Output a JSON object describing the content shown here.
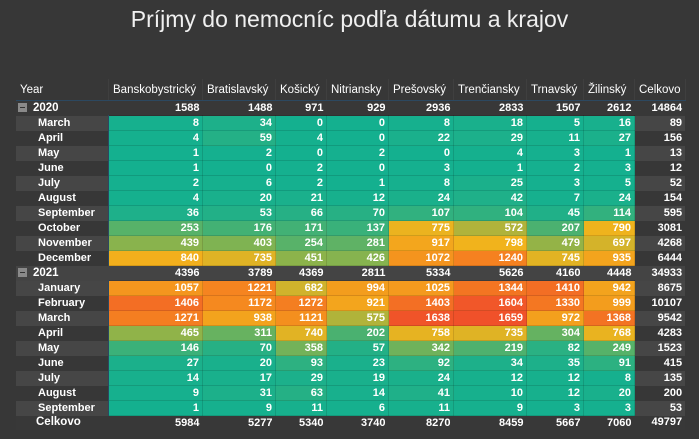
{
  "chart_data": {
    "type": "heatmap",
    "title": "Príjmy do nemocníc podľa dátumu a krajov",
    "row_header": "Year",
    "total_label": "Celkovo",
    "columns": [
      "Banskobystrický",
      "Bratislavský",
      "Košický",
      "Nitriansky",
      "Prešovský",
      "Trenčiansky",
      "Trnavský",
      "Žilinský"
    ],
    "color_scale": [
      [
        0,
        "#14b08f"
      ],
      [
        450,
        "#8cb34b"
      ],
      [
        800,
        "#f2b31c"
      ],
      [
        1200,
        "#f5861f"
      ],
      [
        1660,
        "#f0512a"
      ]
    ],
    "years": [
      {
        "year": "2020",
        "totals": [
          1588,
          1488,
          971,
          929,
          2936,
          2833,
          1507,
          2612
        ],
        "total": 14864,
        "months": [
          {
            "month": "March",
            "values": [
              8,
              34,
              0,
              0,
              8,
              18,
              5,
              16
            ],
            "total": 89
          },
          {
            "month": "April",
            "values": [
              4,
              59,
              4,
              0,
              22,
              29,
              11,
              27
            ],
            "total": 156
          },
          {
            "month": "May",
            "values": [
              1,
              2,
              0,
              2,
              0,
              4,
              3,
              1
            ],
            "total": 13
          },
          {
            "month": "June",
            "values": [
              1,
              0,
              2,
              0,
              3,
              1,
              2,
              3
            ],
            "total": 12
          },
          {
            "month": "July",
            "values": [
              2,
              6,
              2,
              1,
              8,
              25,
              3,
              5
            ],
            "total": 52
          },
          {
            "month": "August",
            "values": [
              4,
              20,
              21,
              12,
              24,
              42,
              7,
              24
            ],
            "total": 154
          },
          {
            "month": "September",
            "values": [
              36,
              53,
              66,
              70,
              107,
              104,
              45,
              114
            ],
            "total": 595
          },
          {
            "month": "October",
            "values": [
              253,
              176,
              171,
              137,
              775,
              572,
              207,
              790
            ],
            "total": 3081
          },
          {
            "month": "November",
            "values": [
              439,
              403,
              254,
              281,
              917,
              798,
              479,
              697
            ],
            "total": 4268
          },
          {
            "month": "December",
            "values": [
              840,
              735,
              451,
              426,
              1072,
              1240,
              745,
              935
            ],
            "total": 6444
          }
        ]
      },
      {
        "year": "2021",
        "totals": [
          4396,
          3789,
          4369,
          2811,
          5334,
          5626,
          4160,
          4448
        ],
        "total": 34933,
        "months": [
          {
            "month": "January",
            "values": [
              1057,
              1221,
              682,
              994,
              1025,
              1344,
              1410,
              942
            ],
            "total": 8675
          },
          {
            "month": "February",
            "values": [
              1406,
              1172,
              1272,
              921,
              1403,
              1604,
              1330,
              999
            ],
            "total": 10107
          },
          {
            "month": "March",
            "values": [
              1271,
              938,
              1121,
              575,
              1638,
              1659,
              972,
              1368
            ],
            "total": 9542
          },
          {
            "month": "April",
            "values": [
              465,
              311,
              740,
              202,
              758,
              735,
              304,
              768
            ],
            "total": 4283
          },
          {
            "month": "May",
            "values": [
              146,
              70,
              358,
              57,
              342,
              219,
              82,
              249
            ],
            "total": 1523
          },
          {
            "month": "June",
            "values": [
              27,
              20,
              93,
              23,
              92,
              34,
              35,
              91
            ],
            "total": 415
          },
          {
            "month": "July",
            "values": [
              14,
              17,
              29,
              19,
              24,
              12,
              12,
              8
            ],
            "total": 135
          },
          {
            "month": "August",
            "values": [
              9,
              31,
              63,
              14,
              41,
              10,
              12,
              20
            ],
            "total": 200
          },
          {
            "month": "September",
            "values": [
              1,
              9,
              11,
              6,
              11,
              9,
              3,
              3
            ],
            "total": 53
          }
        ]
      }
    ],
    "grand_totals": [
      5984,
      5277,
      5340,
      3740,
      8270,
      8459,
      5667,
      7060
    ],
    "grand_total": 49797
  }
}
